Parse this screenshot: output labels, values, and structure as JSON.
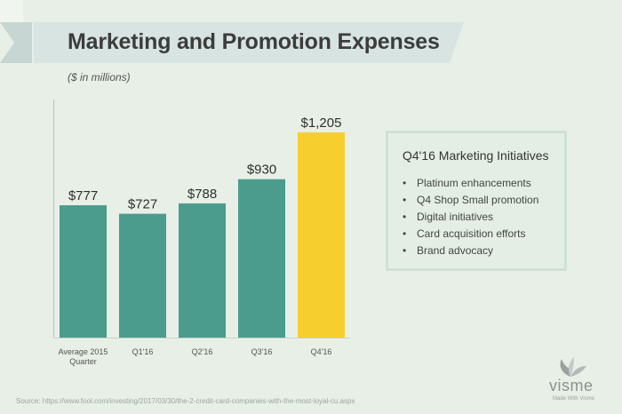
{
  "title": "Marketing and Promotion Expenses",
  "subtitle": "($ in millions)",
  "chart_data": {
    "type": "bar",
    "categories": [
      "Average 2015 Quarter",
      "Q1'16",
      "Q2'16",
      "Q3'16",
      "Q4'16"
    ],
    "category_lines": [
      [
        "Average 2015",
        "Quarter"
      ],
      [
        "Q1'16"
      ],
      [
        "Q2'16"
      ],
      [
        "Q3'16"
      ],
      [
        "Q4'16"
      ]
    ],
    "values": [
      777,
      727,
      788,
      930,
      1205
    ],
    "value_labels": [
      "$777",
      "$727",
      "$788",
      "$930",
      "$1,205"
    ],
    "title": "Marketing and Promotion Expenses",
    "xlabel": "",
    "ylabel": "($ in millions)",
    "ylim": [
      0,
      1205
    ],
    "grid": false,
    "colors": {
      "default": "#4b9c8c",
      "highlight": "#f6cf2f",
      "highlight_category": "Q4'16"
    }
  },
  "panel": {
    "title": "Q4'16 Marketing Initiatives",
    "items": [
      "Platinum enhancements",
      "Q4 Shop Small promotion",
      "Digital initiatives",
      "Card acquisition efforts",
      "Brand advocacy"
    ]
  },
  "source": "Source: https://www.fool.com/investing/2017/03/30/the-2-credit-card-companies-with-the-most-loyal-cu.aspx",
  "logo": {
    "icon": "visme-swirl-icon",
    "word": "visme",
    "tagline": "Made With Visme"
  }
}
